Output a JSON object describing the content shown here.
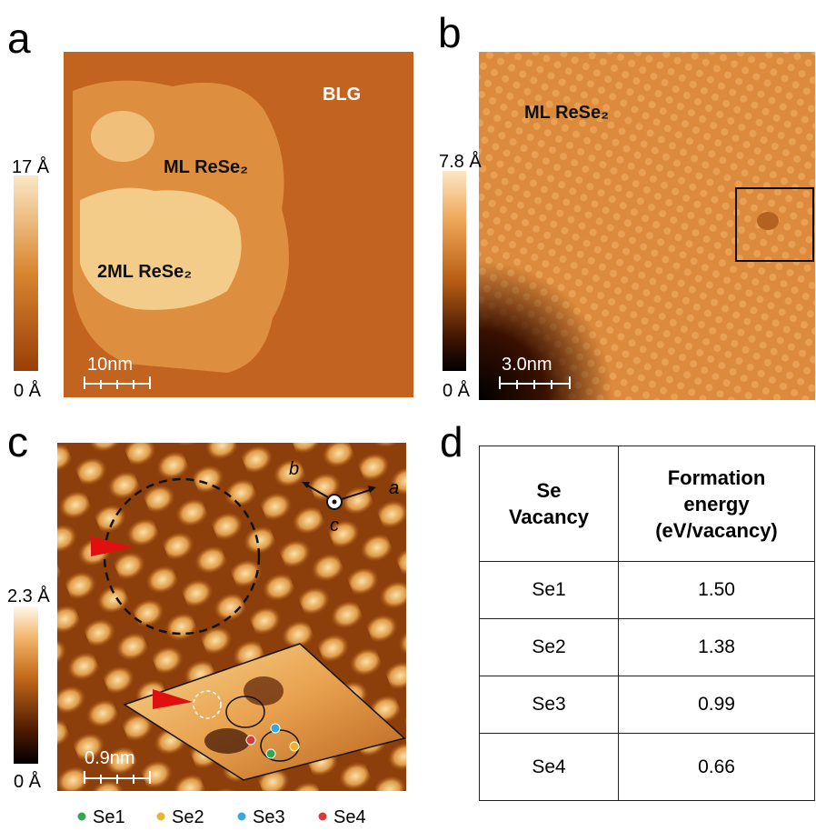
{
  "panels": [
    {
      "label": "a",
      "colorbar": {
        "max": "17 Å",
        "min": "0 Å"
      },
      "annotations": [
        "BLG",
        "ML ReSe₂",
        "2ML ReSe₂"
      ],
      "scale_bar": "10nm"
    },
    {
      "label": "b",
      "colorbar": {
        "max": "7.8 Å",
        "min": "0 Å"
      },
      "annotations": [
        "ML ReSe₂"
      ],
      "scale_bar": "3.0nm"
    },
    {
      "label": "c",
      "colorbar": {
        "max": "2.3 Å",
        "min": "0 Å"
      },
      "axes": [
        "a",
        "b",
        "c"
      ],
      "scale_bar": "0.9nm",
      "legend": [
        {
          "name": "Se1",
          "color": "#33a653"
        },
        {
          "name": "Se2",
          "color": "#e9b52e"
        },
        {
          "name": "Se3",
          "color": "#37a7e0"
        },
        {
          "name": "Se4",
          "color": "#d63a3a"
        }
      ]
    },
    {
      "label": "d",
      "table": {
        "header": [
          [
            "Se",
            "Vacancy"
          ],
          [
            "Formation",
            "energy",
            "(eV/vacancy)"
          ]
        ],
        "rows": [
          [
            "Se1",
            "1.50"
          ],
          [
            "Se2",
            "1.38"
          ],
          [
            "Se3",
            "0.99"
          ],
          [
            "Se4",
            "0.66"
          ]
        ]
      }
    }
  ]
}
